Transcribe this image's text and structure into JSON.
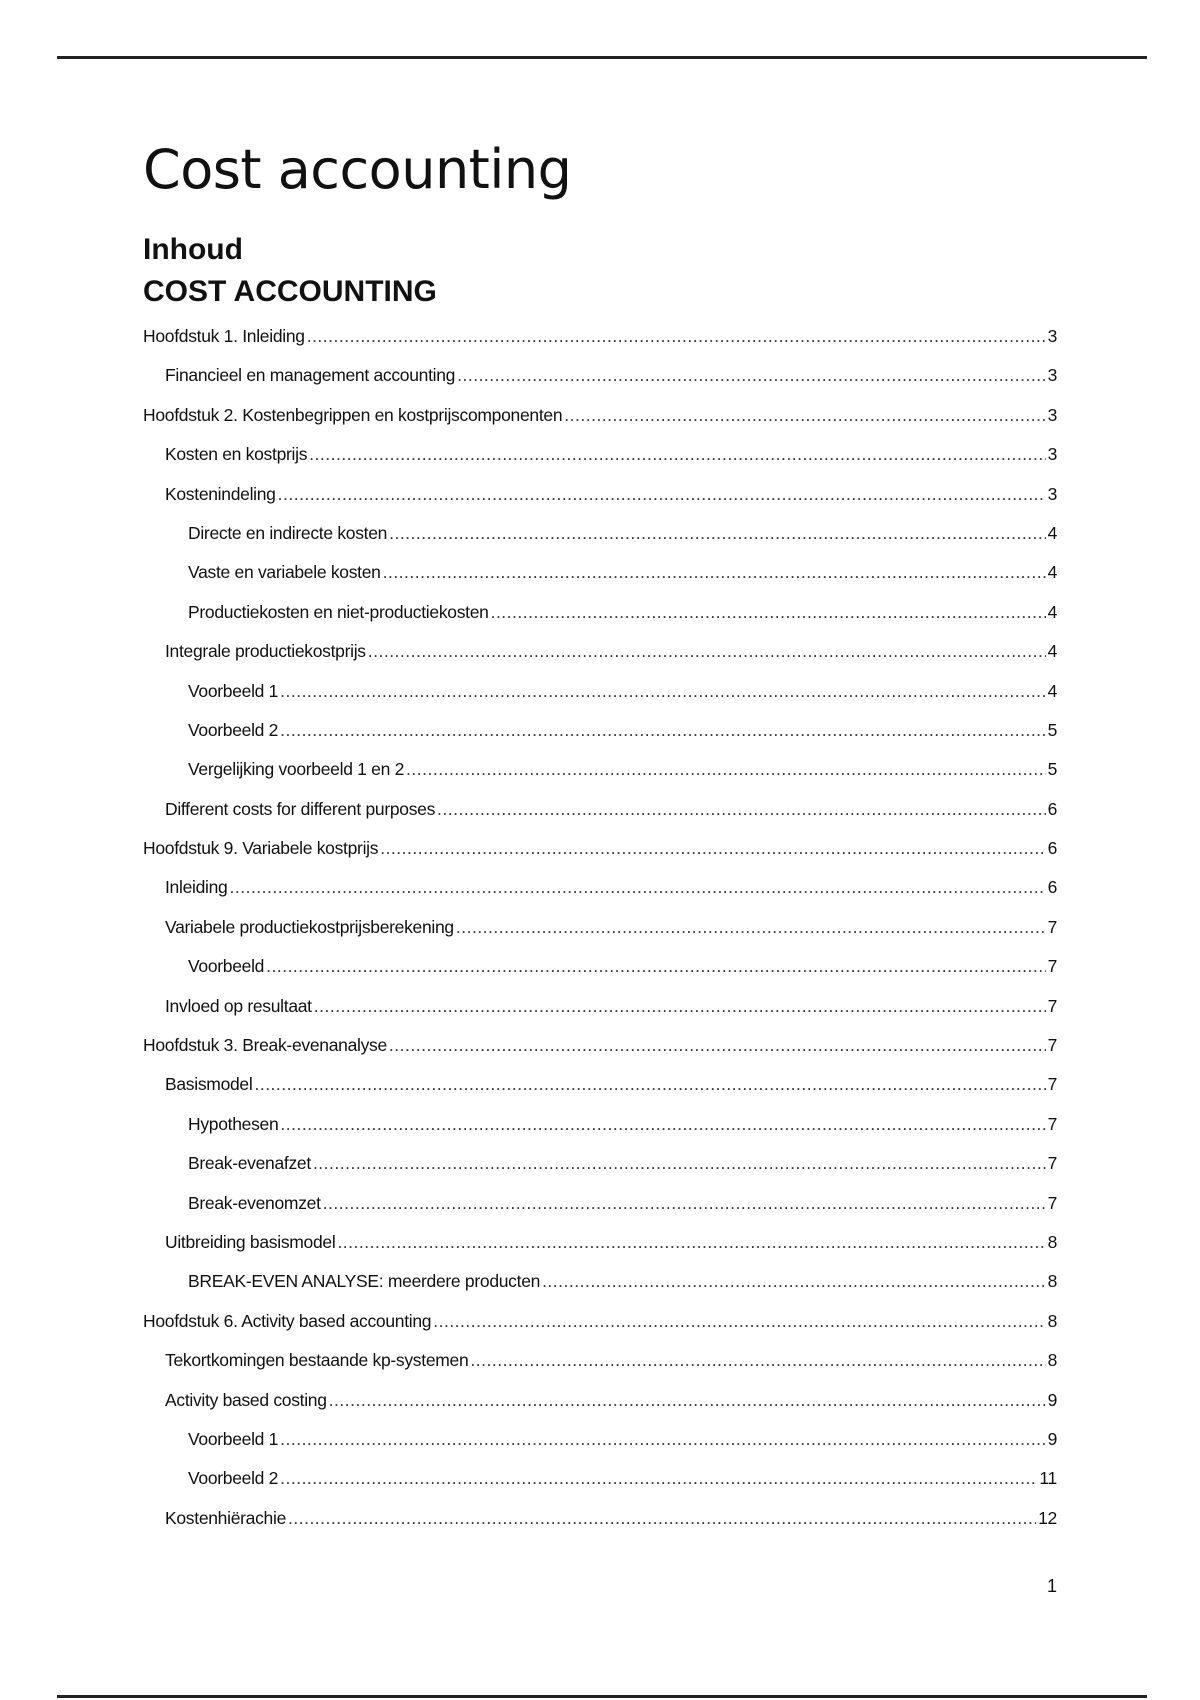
{
  "title": "Cost accounting",
  "toc_heading": "Inhoud",
  "toc_subheading": "COST ACCOUNTING",
  "toc": [
    {
      "label": "Hoofdstuk 1. Inleiding",
      "page": "3",
      "level": 0
    },
    {
      "label": "Financieel en management accounting",
      "page": "3",
      "level": 1
    },
    {
      "label": "Hoofdstuk 2. Kostenbegrippen en kostprijscomponenten",
      "page": "3",
      "level": 0
    },
    {
      "label": "Kosten en kostprijs",
      "page": "3",
      "level": 1
    },
    {
      "label": "Kostenindeling",
      "page": "3",
      "level": 1
    },
    {
      "label": "Directe en indirecte kosten",
      "page": "4",
      "level": 2
    },
    {
      "label": "Vaste en variabele kosten",
      "page": "4",
      "level": 2
    },
    {
      "label": "Productiekosten en niet-productiekosten",
      "page": "4",
      "level": 2
    },
    {
      "label": "Integrale productiekostprijs",
      "page": "4",
      "level": 1
    },
    {
      "label": "Voorbeeld 1",
      "page": "4",
      "level": 2
    },
    {
      "label": "Voorbeeld 2",
      "page": "5",
      "level": 2
    },
    {
      "label": "Vergelijking voorbeeld 1 en 2",
      "page": "5",
      "level": 2
    },
    {
      "label": "Different costs for different purposes",
      "page": "6",
      "level": 1
    },
    {
      "label": "Hoofdstuk 9. Variabele kostprijs",
      "page": "6",
      "level": 0
    },
    {
      "label": "Inleiding",
      "page": "6",
      "level": 1
    },
    {
      "label": "Variabele productiekostprijsberekening",
      "page": "7",
      "level": 1
    },
    {
      "label": "Voorbeeld",
      "page": "7",
      "level": 2
    },
    {
      "label": "Invloed op resultaat",
      "page": "7",
      "level": 1
    },
    {
      "label": "Hoofdstuk 3. Break-evenanalyse",
      "page": "7",
      "level": 0
    },
    {
      "label": "Basismodel",
      "page": "7",
      "level": 1
    },
    {
      "label": "Hypothesen",
      "page": "7",
      "level": 2
    },
    {
      "label": "Break-evenafzet",
      "page": "7",
      "level": 2
    },
    {
      "label": "Break-evenomzet",
      "page": "7",
      "level": 2
    },
    {
      "label": "Uitbreiding basismodel",
      "page": "8",
      "level": 1
    },
    {
      "label": "BREAK-EVEN ANALYSE: meerdere producten",
      "page": "8",
      "level": 2
    },
    {
      "label": "Hoofdstuk 6. Activity based accounting",
      "page": "8",
      "level": 0
    },
    {
      "label": "Tekortkomingen bestaande kp-systemen",
      "page": "8",
      "level": 1
    },
    {
      "label": "Activity based costing",
      "page": "9",
      "level": 1
    },
    {
      "label": "Voorbeeld 1",
      "page": "9",
      "level": 2
    },
    {
      "label": "Voorbeeld 2",
      "page": "11",
      "level": 2
    },
    {
      "label": "Kostenhiërachie",
      "page": "12",
      "level": 1
    }
  ],
  "page_number": "1"
}
